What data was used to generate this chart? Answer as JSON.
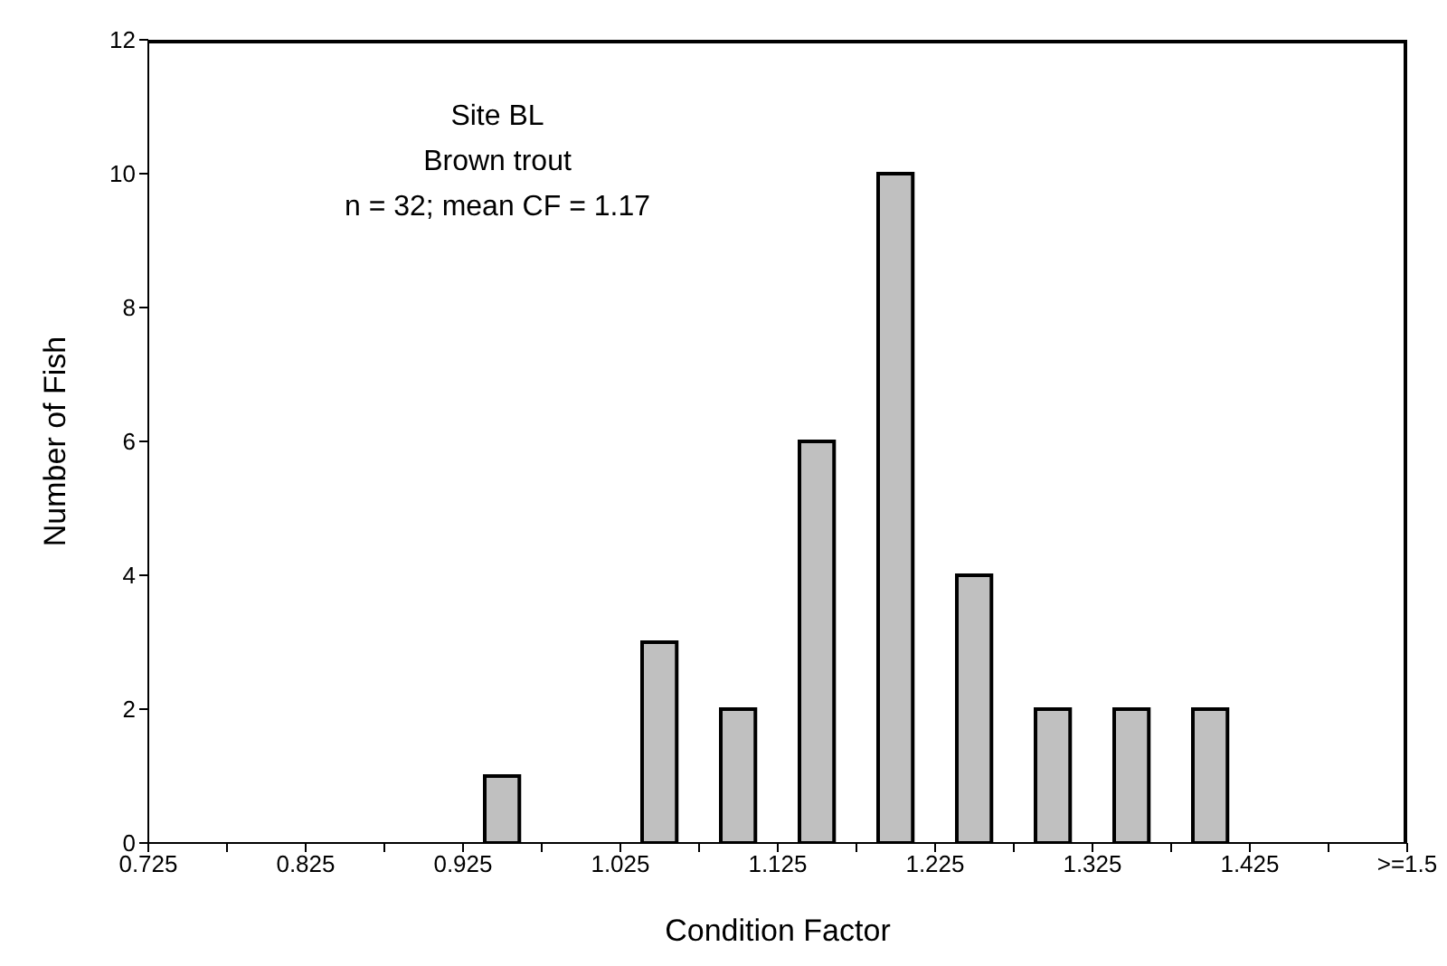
{
  "chart_data": {
    "type": "histogram",
    "xlabel": "Condition Factor",
    "ylabel": "Number of Fish",
    "annotations": [
      "Site BL\nBrown trout\nn = 32; mean CF = 1.17"
    ],
    "bins": [
      0.725,
      0.775,
      0.825,
      0.875,
      0.925,
      0.975,
      1.025,
      1.075,
      1.125,
      1.175,
      1.225,
      1.275,
      1.325,
      1.375,
      1.425,
      1.475,
      1.525
    ],
    "values": [
      0,
      0,
      0,
      0,
      1,
      0,
      3,
      2,
      6,
      10,
      4,
      2,
      2,
      2,
      0,
      0
    ],
    "color": "#c0c0c0",
    "xlim": [
      0.725,
      1.525
    ],
    "xticks": [
      0.725,
      {
        "value": 0.775,
        "label": null
      },
      0.825,
      {
        "value": 0.875,
        "label": null
      },
      0.925,
      {
        "value": 0.975,
        "label": null
      },
      1.025,
      {
        "value": 1.075,
        "label": null
      },
      1.125,
      {
        "value": 1.175,
        "label": null
      },
      1.225,
      {
        "value": 1.275,
        "label": null
      },
      1.325,
      {
        "value": 1.375,
        "label": null
      },
      1.425,
      {
        "value": 1.475,
        "label": null
      },
      {
        "value": 1.525,
        "label": ">=1.5"
      }
    ],
    "ylim": [
      0,
      12
    ],
    "yticks": [
      0,
      2,
      4,
      6,
      8,
      10,
      12
    ],
    "grid": false,
    "legend": false
  }
}
